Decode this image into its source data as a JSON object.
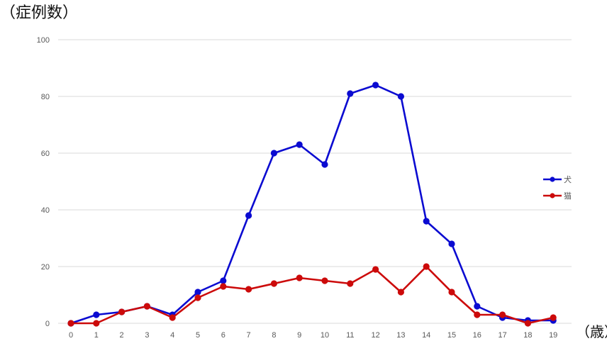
{
  "chart_data": {
    "type": "line",
    "ylabel": "（症例数）",
    "xlabel": "（歳）",
    "ylim": [
      0,
      100
    ],
    "yticks": [
      0,
      20,
      40,
      60,
      80,
      100
    ],
    "x": [
      0,
      1,
      2,
      3,
      4,
      5,
      6,
      7,
      8,
      9,
      10,
      11,
      12,
      13,
      14,
      15,
      16,
      17,
      18,
      19
    ],
    "grid": true,
    "legend_position": "right",
    "series": [
      {
        "name": "犬",
        "color": "#0b0bd1",
        "values": [
          0,
          3,
          4,
          6,
          3,
          11,
          15,
          38,
          60,
          63,
          56,
          81,
          84,
          80,
          36,
          28,
          6,
          2,
          1,
          1
        ]
      },
      {
        "name": "猫",
        "color": "#cc0a0a",
        "values": [
          0,
          0,
          4,
          6,
          2,
          9,
          13,
          12,
          14,
          16,
          15,
          14,
          19,
          11,
          20,
          11,
          3,
          3,
          0,
          2
        ]
      }
    ]
  }
}
